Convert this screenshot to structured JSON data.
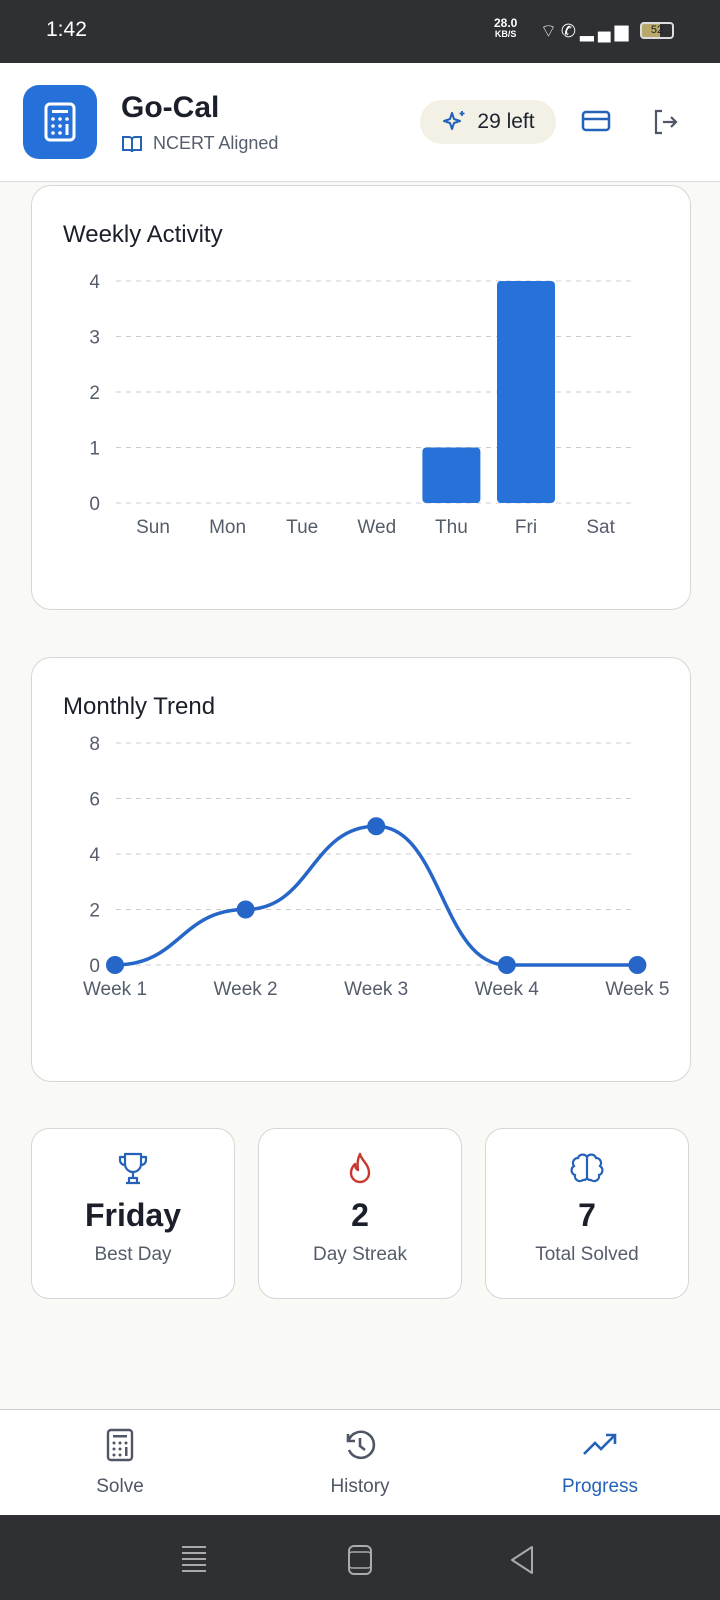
{
  "status_bar": {
    "time": "1:42",
    "net_speed": "28.0",
    "net_unit": "KB/S",
    "battery": "52"
  },
  "header": {
    "title": "Go-Cal",
    "subtitle": "NCERT Aligned",
    "credits": "29 left"
  },
  "chart_data": [
    {
      "type": "bar",
      "title": "Weekly Activity",
      "categories": [
        "Sun",
        "Mon",
        "Tue",
        "Wed",
        "Thu",
        "Fri",
        "Sat"
      ],
      "values": [
        0,
        0,
        0,
        0,
        1,
        4,
        0
      ],
      "yticks": [
        "0",
        "1",
        "2",
        "3",
        "4"
      ],
      "ylim": [
        0,
        4
      ],
      "grid": true,
      "color": "#2672d9"
    },
    {
      "type": "line",
      "title": "Monthly Trend",
      "categories": [
        "Week 1",
        "Week 2",
        "Week 3",
        "Week 4",
        "Week 5"
      ],
      "values": [
        0,
        2,
        5,
        0,
        0
      ],
      "yticks": [
        "0",
        "2",
        "4",
        "6",
        "8"
      ],
      "ylim": [
        0,
        8
      ],
      "grid": true,
      "color": "#2566c8"
    }
  ],
  "stats": [
    {
      "value": "Friday",
      "label": "Best Day",
      "icon": "trophy-icon",
      "color": "#2462b8"
    },
    {
      "value": "2",
      "label": "Day Streak",
      "icon": "flame-icon",
      "color": "#c8382f"
    },
    {
      "value": "7",
      "label": "Total Solved",
      "icon": "brain-icon",
      "color": "#2462b8"
    }
  ],
  "nav": [
    {
      "label": "Solve"
    },
    {
      "label": "History"
    },
    {
      "label": "Progress",
      "active": true
    }
  ]
}
